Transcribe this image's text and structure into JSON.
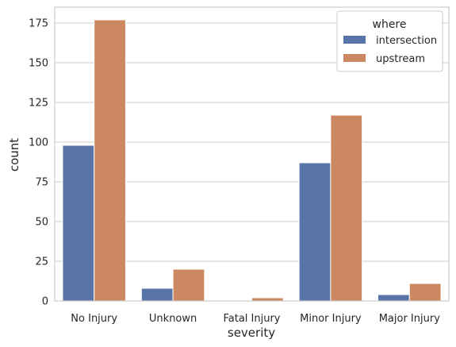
{
  "chart_data": {
    "type": "bar",
    "categories": [
      "No Injury",
      "Unknown",
      "Fatal Injury",
      "Minor Injury",
      "Major Injury"
    ],
    "series": [
      {
        "name": "intersection",
        "values": [
          98,
          8,
          0,
          87,
          4
        ],
        "color": "#5874a8"
      },
      {
        "name": "upstream",
        "values": [
          177,
          20,
          2,
          117,
          11
        ],
        "color": "#cc8860"
      }
    ],
    "xlabel": "severity",
    "ylabel": "count",
    "ylim": [
      0,
      185
    ],
    "yticks": [
      0,
      25,
      50,
      75,
      100,
      125,
      150,
      175
    ],
    "grid": "horizontal",
    "legend": {
      "title": "where",
      "placement": "top-right"
    }
  }
}
